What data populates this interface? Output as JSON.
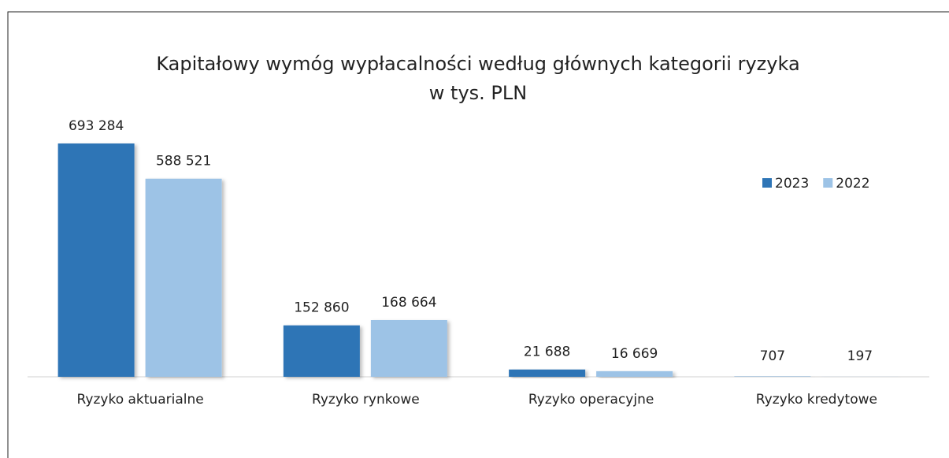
{
  "chart_data": {
    "type": "bar",
    "title": "Kapitałowy wymóg wypłacalności według głównych kategorii ryzyka",
    "subtitle": "w tys. PLN",
    "categories": [
      "Ryzyko aktuarialne",
      "Ryzyko rynkowe",
      "Ryzyko operacyjne",
      "Ryzyko kredytowe"
    ],
    "series": [
      {
        "name": "2023",
        "color": "#2e75b6",
        "values": [
          693284,
          152860,
          21688,
          707
        ],
        "value_labels": [
          "693 284",
          "152 860",
          "21 688",
          "707"
        ]
      },
      {
        "name": "2022",
        "color": "#9dc3e6",
        "values": [
          588521,
          168664,
          16669,
          197
        ],
        "value_labels": [
          "588 521",
          "168 664",
          "16 669",
          "197"
        ]
      }
    ],
    "legend": "right"
  }
}
